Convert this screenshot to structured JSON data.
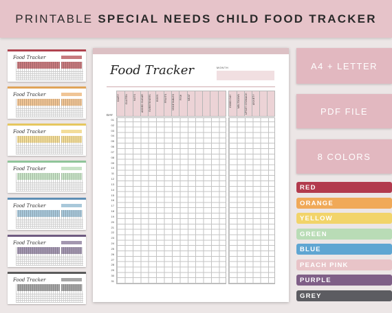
{
  "banner": {
    "title_light": "PRINTABLE",
    "title_bold": "SPECIAL NEEDS CHILD FOOD TRACKER"
  },
  "thumbnails": [
    {
      "title": "Food Tracker",
      "color": "#b0434f",
      "fill": "#c77b7f"
    },
    {
      "title": "Food Tracker",
      "color": "#e0a458",
      "fill": "#f0c596"
    },
    {
      "title": "Food Tracker",
      "color": "#e6c75e",
      "fill": "#f3dd9a"
    },
    {
      "title": "Food Tracker",
      "color": "#8fc59a",
      "fill": "#c8e3c7"
    },
    {
      "title": "Food Tracker",
      "color": "#5e8fb5",
      "fill": "#a9c8da"
    },
    {
      "title": "Food Tracker",
      "color": "#6e5a80",
      "fill": "#a397b0"
    },
    {
      "title": "Food Tracker",
      "color": "#5a5a5a",
      "fill": "#a6a6a6"
    }
  ],
  "sheet": {
    "title": "Food Tracker",
    "month_label": "MONTH",
    "day_label": "DAY",
    "columns_main": [
      "DAIRY",
      "GLUTEN",
      "NUTS",
      "ADDED SUGAR",
      "SWEETENERS",
      "EGGS",
      "FRUITS",
      "VEGETABLES",
      "FISH",
      "MEAT",
      "",
      "",
      "",
      ""
    ],
    "columns_side": [
      "GOOD DAY",
      "MELTDOWN",
      "UPSET STOMACH",
      "ANXIETY",
      "",
      ""
    ],
    "days": [
      "01",
      "02",
      "03",
      "04",
      "05",
      "06",
      "07",
      "08",
      "09",
      "10",
      "11",
      "12",
      "13",
      "14",
      "15",
      "16",
      "17",
      "18",
      "19",
      "20",
      "21",
      "22",
      "23",
      "24",
      "25",
      "26",
      "27",
      "28",
      "29",
      "30",
      "31"
    ]
  },
  "cards": [
    {
      "label": "A4 + LETTER"
    },
    {
      "label": "PDF FILE"
    },
    {
      "label": "8 COLORS"
    }
  ],
  "colors": [
    {
      "label": "RED",
      "hex": "#b23a4d"
    },
    {
      "label": "ORANGE",
      "hex": "#f0a958"
    },
    {
      "label": "YELLOW",
      "hex": "#f2d46a"
    },
    {
      "label": "GREEN",
      "hex": "#b9dcb6"
    },
    {
      "label": "BLUE",
      "hex": "#5fa6d2"
    },
    {
      "label": "PEACH PINK",
      "hex": "#e8c4c8"
    },
    {
      "label": "PURPLE",
      "hex": "#7f5f87"
    },
    {
      "label": "GREY",
      "hex": "#5c5c61"
    }
  ]
}
